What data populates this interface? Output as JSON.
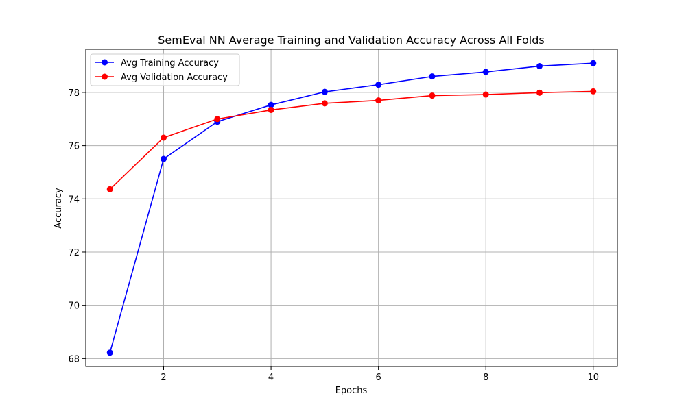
{
  "chart_data": {
    "type": "line",
    "title": "SemEval NN Average Training and Validation Accuracy Across All Folds",
    "xlabel": "Epochs",
    "ylabel": "Accuracy",
    "x": [
      1,
      2,
      3,
      4,
      5,
      6,
      7,
      8,
      9,
      10
    ],
    "xlim": [
      0.55,
      10.45
    ],
    "ylim": [
      67.7,
      79.62
    ],
    "xticks": [
      2,
      4,
      6,
      8,
      10
    ],
    "yticks": [
      68,
      70,
      72,
      74,
      76,
      78
    ],
    "grid": true,
    "legend_position": "top-left",
    "series": [
      {
        "name": "Avg Training Accuracy",
        "color": "#0000ff",
        "marker": "circle",
        "values": [
          68.22,
          75.5,
          76.9,
          77.53,
          78.02,
          78.29,
          78.6,
          78.77,
          78.99,
          79.1
        ]
      },
      {
        "name": "Avg Validation Accuracy",
        "color": "#ff0000",
        "marker": "circle",
        "values": [
          74.36,
          76.3,
          77.0,
          77.34,
          77.59,
          77.7,
          77.88,
          77.92,
          77.99,
          78.04
        ]
      }
    ]
  }
}
